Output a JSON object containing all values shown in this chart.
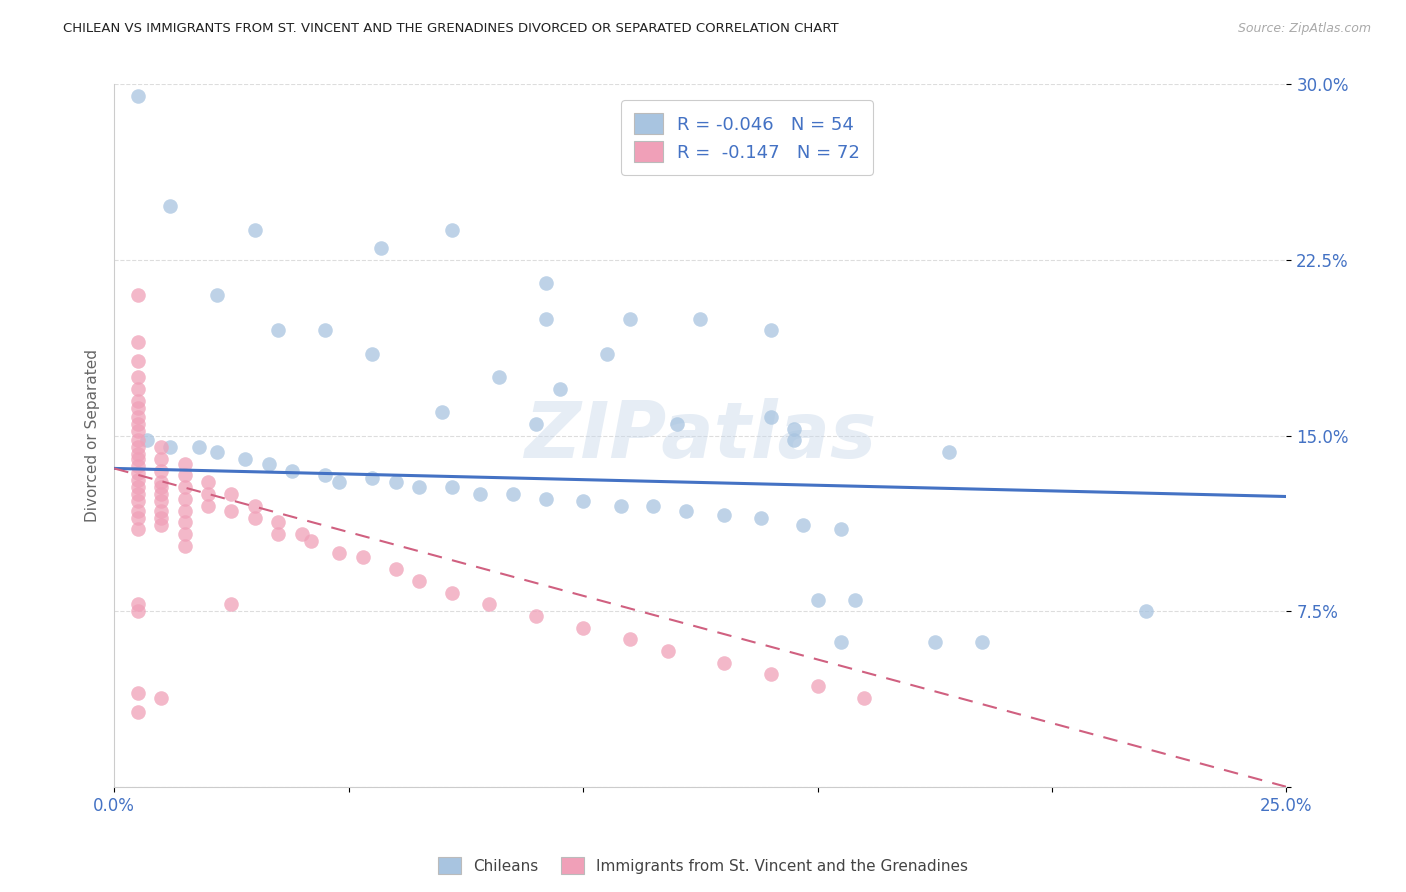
{
  "title": "CHILEAN VS IMMIGRANTS FROM ST. VINCENT AND THE GRENADINES DIVORCED OR SEPARATED CORRELATION CHART",
  "source": "Source: ZipAtlas.com",
  "ylabel": "Divorced or Separated",
  "xlim": [
    0.0,
    0.25
  ],
  "ylim": [
    0.0,
    0.3
  ],
  "xticks": [
    0.0,
    0.05,
    0.1,
    0.15,
    0.2,
    0.25
  ],
  "yticks": [
    0.0,
    0.075,
    0.15,
    0.225,
    0.3
  ],
  "xticklabels": [
    "0.0%",
    "",
    "",
    "",
    "",
    "25.0%"
  ],
  "yticklabels": [
    "",
    "7.5%",
    "15.0%",
    "22.5%",
    "30.0%"
  ],
  "legend_label1": "Chileans",
  "legend_label2": "Immigrants from St. Vincent and the Grenadines",
  "R1": "-0.046",
  "N1": "54",
  "R2": "-0.147",
  "N2": "72",
  "color_blue": "#a8c4e0",
  "color_pink": "#f0a0b8",
  "line_color_blue": "#4472c4",
  "line_color_pink": "#d06080",
  "watermark": "ZIPatlas",
  "blue_trend": [
    0.136,
    0.124
  ],
  "pink_trend": [
    0.136,
    0.0
  ],
  "blue_points": [
    [
      0.005,
      0.295
    ],
    [
      0.012,
      0.248
    ],
    [
      0.03,
      0.238
    ],
    [
      0.057,
      0.23
    ],
    [
      0.072,
      0.238
    ],
    [
      0.092,
      0.215
    ],
    [
      0.11,
      0.2
    ],
    [
      0.125,
      0.2
    ],
    [
      0.14,
      0.195
    ],
    [
      0.022,
      0.21
    ],
    [
      0.035,
      0.195
    ],
    [
      0.045,
      0.195
    ],
    [
      0.055,
      0.185
    ],
    [
      0.07,
      0.16
    ],
    [
      0.082,
      0.175
    ],
    [
      0.095,
      0.17
    ],
    [
      0.105,
      0.185
    ],
    [
      0.12,
      0.155
    ],
    [
      0.14,
      0.158
    ],
    [
      0.145,
      0.153
    ],
    [
      0.145,
      0.148
    ],
    [
      0.007,
      0.148
    ],
    [
      0.012,
      0.145
    ],
    [
      0.018,
      0.145
    ],
    [
      0.022,
      0.143
    ],
    [
      0.028,
      0.14
    ],
    [
      0.033,
      0.138
    ],
    [
      0.038,
      0.135
    ],
    [
      0.045,
      0.133
    ],
    [
      0.048,
      0.13
    ],
    [
      0.055,
      0.132
    ],
    [
      0.06,
      0.13
    ],
    [
      0.065,
      0.128
    ],
    [
      0.072,
      0.128
    ],
    [
      0.078,
      0.125
    ],
    [
      0.085,
      0.125
    ],
    [
      0.092,
      0.123
    ],
    [
      0.1,
      0.122
    ],
    [
      0.108,
      0.12
    ],
    [
      0.115,
      0.12
    ],
    [
      0.122,
      0.118
    ],
    [
      0.13,
      0.116
    ],
    [
      0.138,
      0.115
    ],
    [
      0.147,
      0.112
    ],
    [
      0.155,
      0.11
    ],
    [
      0.092,
      0.2
    ],
    [
      0.178,
      0.143
    ],
    [
      0.22,
      0.075
    ],
    [
      0.09,
      0.155
    ],
    [
      0.15,
      0.08
    ],
    [
      0.158,
      0.08
    ],
    [
      0.175,
      0.062
    ],
    [
      0.185,
      0.062
    ],
    [
      0.155,
      0.062
    ]
  ],
  "pink_points": [
    [
      0.005,
      0.21
    ],
    [
      0.005,
      0.19
    ],
    [
      0.005,
      0.182
    ],
    [
      0.005,
      0.175
    ],
    [
      0.005,
      0.17
    ],
    [
      0.005,
      0.165
    ],
    [
      0.005,
      0.162
    ],
    [
      0.005,
      0.158
    ],
    [
      0.005,
      0.155
    ],
    [
      0.005,
      0.152
    ],
    [
      0.005,
      0.148
    ],
    [
      0.005,
      0.145
    ],
    [
      0.005,
      0.142
    ],
    [
      0.005,
      0.14
    ],
    [
      0.005,
      0.137
    ],
    [
      0.005,
      0.134
    ],
    [
      0.005,
      0.131
    ],
    [
      0.005,
      0.128
    ],
    [
      0.005,
      0.125
    ],
    [
      0.005,
      0.122
    ],
    [
      0.005,
      0.118
    ],
    [
      0.005,
      0.115
    ],
    [
      0.005,
      0.11
    ],
    [
      0.005,
      0.078
    ],
    [
      0.005,
      0.075
    ],
    [
      0.005,
      0.04
    ],
    [
      0.005,
      0.032
    ],
    [
      0.01,
      0.145
    ],
    [
      0.01,
      0.14
    ],
    [
      0.01,
      0.135
    ],
    [
      0.01,
      0.13
    ],
    [
      0.01,
      0.128
    ],
    [
      0.01,
      0.125
    ],
    [
      0.01,
      0.122
    ],
    [
      0.01,
      0.118
    ],
    [
      0.01,
      0.115
    ],
    [
      0.01,
      0.112
    ],
    [
      0.01,
      0.038
    ],
    [
      0.015,
      0.138
    ],
    [
      0.015,
      0.133
    ],
    [
      0.015,
      0.128
    ],
    [
      0.015,
      0.123
    ],
    [
      0.015,
      0.118
    ],
    [
      0.015,
      0.113
    ],
    [
      0.015,
      0.108
    ],
    [
      0.015,
      0.103
    ],
    [
      0.02,
      0.13
    ],
    [
      0.02,
      0.125
    ],
    [
      0.02,
      0.12
    ],
    [
      0.025,
      0.125
    ],
    [
      0.025,
      0.118
    ],
    [
      0.025,
      0.078
    ],
    [
      0.03,
      0.12
    ],
    [
      0.03,
      0.115
    ],
    [
      0.035,
      0.113
    ],
    [
      0.035,
      0.108
    ],
    [
      0.04,
      0.108
    ],
    [
      0.042,
      0.105
    ],
    [
      0.048,
      0.1
    ],
    [
      0.053,
      0.098
    ],
    [
      0.06,
      0.093
    ],
    [
      0.065,
      0.088
    ],
    [
      0.072,
      0.083
    ],
    [
      0.08,
      0.078
    ],
    [
      0.09,
      0.073
    ],
    [
      0.1,
      0.068
    ],
    [
      0.11,
      0.063
    ],
    [
      0.118,
      0.058
    ],
    [
      0.13,
      0.053
    ],
    [
      0.14,
      0.048
    ],
    [
      0.15,
      0.043
    ],
    [
      0.16,
      0.038
    ]
  ]
}
